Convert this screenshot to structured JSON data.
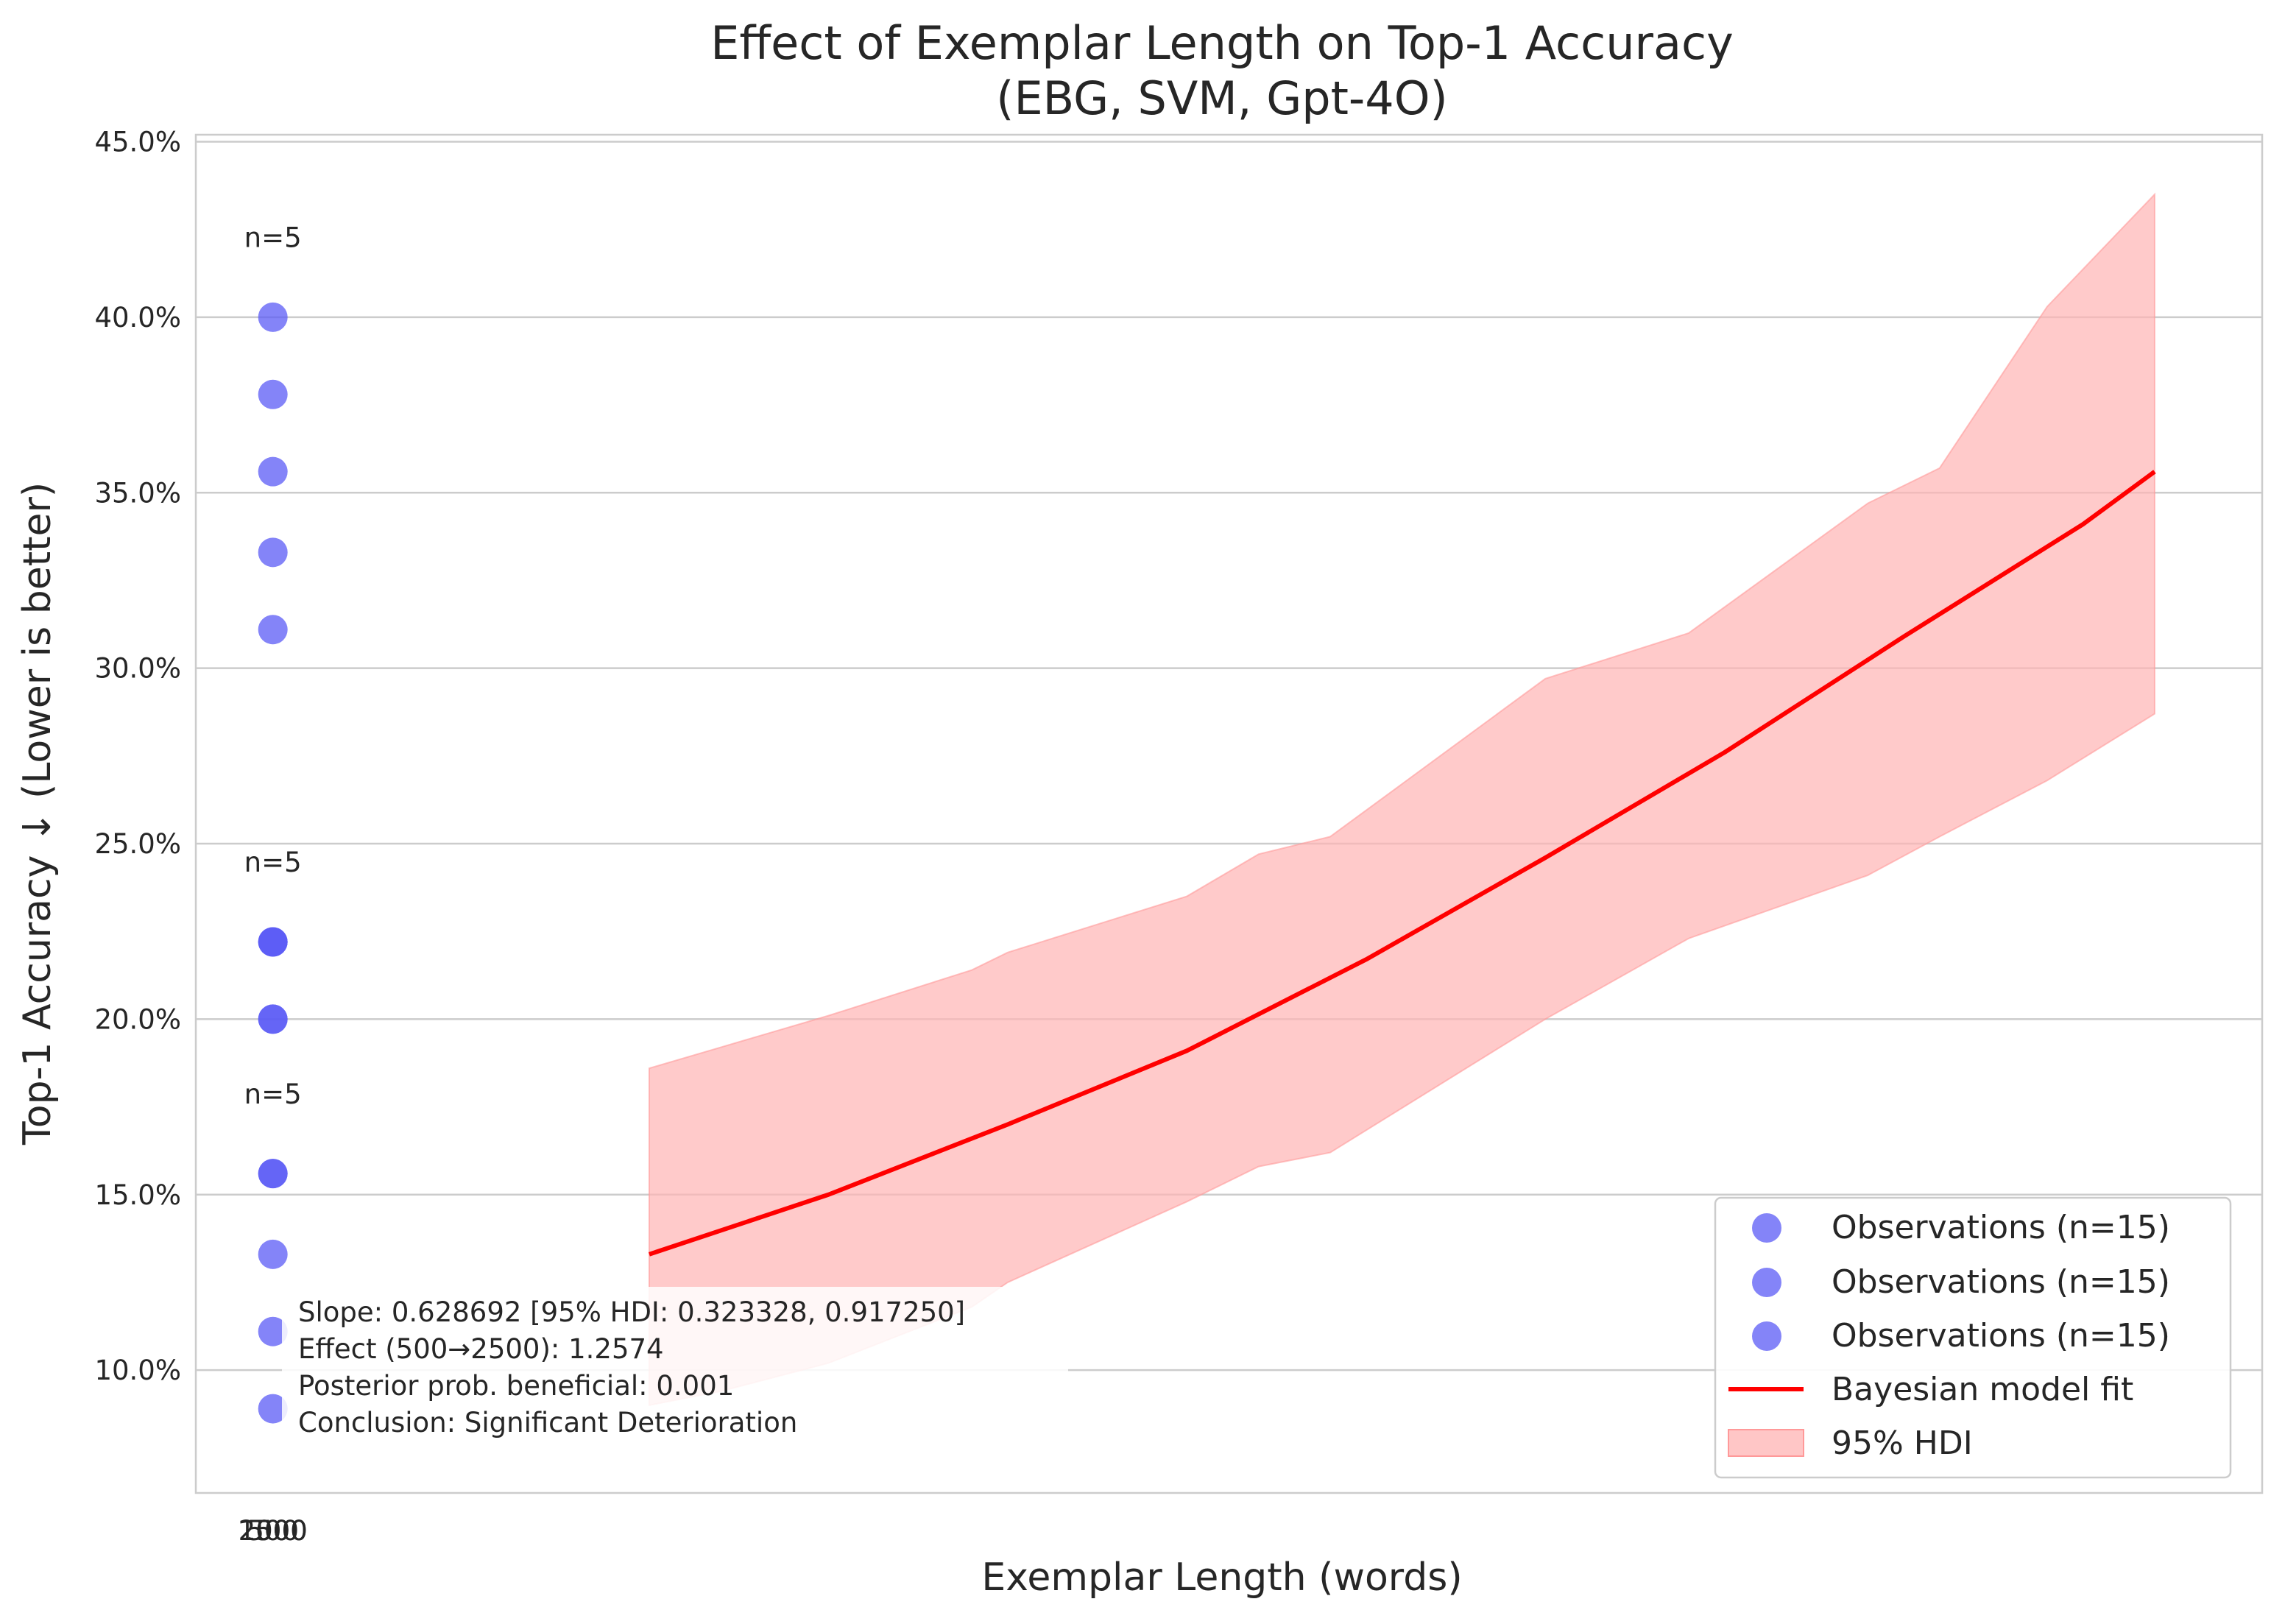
{
  "chart_data": {
    "type": "scatter",
    "title": "Effect of Exemplar Length on Top-1 Accuracy",
    "subtitle": "(EBG, SVM, Gpt-4O)",
    "xlabel": "Exemplar Length (words)",
    "ylabel": "Top-1 Accuracy ↓ (Lower is better)",
    "ylim": [
      0.065,
      0.452
    ],
    "xlim": [
      -0.165,
      5.6
    ],
    "y_tick_values": [
      0.1,
      0.15,
      0.2,
      0.25,
      0.3,
      0.35,
      0.4,
      0.45
    ],
    "y_tick_labels": [
      "10.0%",
      "15.0%",
      "20.0%",
      "25.0%",
      "30.0%",
      "35.0%",
      "40.0%",
      "45.0%"
    ],
    "x_tick_labels": [
      "500",
      "1000",
      "2500"
    ],
    "grid": "horizontal",
    "legend_position": "lower-right",
    "colors": {
      "observation": "#5b5bf5",
      "fit": "#ff0000",
      "hdi": "#ffb3b3",
      "grid": "#cccccc",
      "axis": "#cccccc"
    },
    "series": [
      {
        "name": "Observations (n=15)",
        "x": [
          0.05,
          0.05,
          0.05,
          0.05,
          0.05
        ],
        "y": [
          0.089,
          0.111,
          0.133,
          0.156,
          0.156
        ]
      },
      {
        "name": "Observations (n=15)",
        "x": [
          0.05,
          0.05,
          0.05,
          0.05,
          0.05
        ],
        "y": [
          0.2,
          0.222,
          0.222,
          0.2,
          0.222
        ]
      },
      {
        "name": "Observations (n=15)",
        "x": [
          0.05,
          0.05,
          0.05,
          0.05,
          0.05
        ],
        "y": [
          0.311,
          0.333,
          0.356,
          0.378,
          0.4
        ]
      }
    ],
    "fit": {
      "name": "Bayesian model fit",
      "x": [
        1.1,
        1.6,
        2.1,
        2.6,
        3.1,
        3.6,
        4.1,
        4.6,
        5.1,
        5.3
      ],
      "y": [
        0.133,
        0.15,
        0.17,
        0.191,
        0.217,
        0.246,
        0.276,
        0.309,
        0.341,
        0.356
      ]
    },
    "hdi": {
      "name": "95% HDI",
      "x": [
        1.1,
        1.3,
        1.6,
        2.0,
        2.1,
        2.6,
        2.8,
        3.0,
        3.6,
        4.0,
        4.5,
        4.7,
        5.0,
        5.3
      ],
      "upper": [
        0.186,
        0.192,
        0.201,
        0.214,
        0.219,
        0.235,
        0.247,
        0.252,
        0.297,
        0.31,
        0.347,
        0.357,
        0.403,
        0.435
      ],
      "lower": [
        0.09,
        0.094,
        0.102,
        0.118,
        0.125,
        0.148,
        0.158,
        0.162,
        0.2,
        0.223,
        0.241,
        0.252,
        0.268,
        0.287
      ]
    },
    "annotations": [
      {
        "text": "n=5",
        "x": 0.05,
        "y": 0.42
      },
      {
        "text": "n=5",
        "x": 0.05,
        "y": 0.242
      },
      {
        "text": "n=5",
        "x": 0.05,
        "y": 0.176
      }
    ],
    "stats_box": [
      "Slope: 0.628692 [95% HDI: 0.323328, 0.917250]",
      "Effect (500→2500): 1.2574",
      "Posterior prob. beneficial: 0.001",
      "Conclusion: Significant Deterioration"
    ],
    "legend": [
      {
        "label": "Observations (n=15)",
        "kind": "marker"
      },
      {
        "label": "Observations (n=15)",
        "kind": "marker"
      },
      {
        "label": "Observations (n=15)",
        "kind": "marker"
      },
      {
        "label": "Bayesian model fit",
        "kind": "line"
      },
      {
        "label": "95% HDI",
        "kind": "patch"
      }
    ]
  }
}
